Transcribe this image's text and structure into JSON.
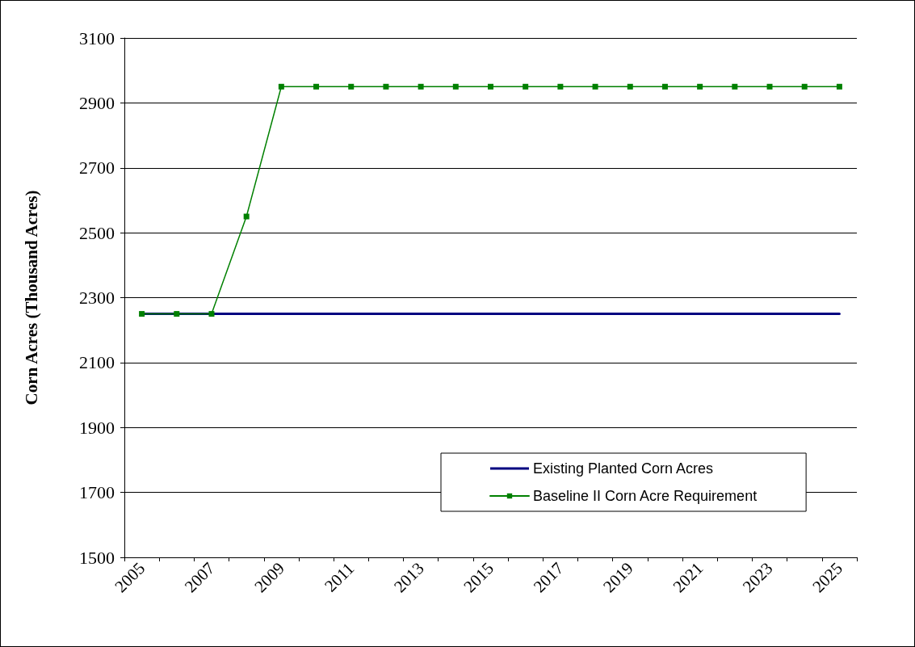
{
  "chart_data": {
    "type": "line",
    "ylabel": "Corn Acres (Thousand Acres)",
    "categories": [
      "2005",
      null,
      "2007",
      null,
      "2009",
      null,
      "2011",
      null,
      "2013",
      null,
      "2015",
      null,
      "2017",
      null,
      "2019",
      null,
      "2021",
      null,
      "2023",
      null,
      "2025"
    ],
    "series": [
      {
        "name": "Existing Planted Corn Acres",
        "color": "#000080",
        "marker": "none",
        "values": [
          2250,
          2250,
          2250,
          2250,
          2250,
          2250,
          2250,
          2250,
          2250,
          2250,
          2250,
          2250,
          2250,
          2250,
          2250,
          2250,
          2250,
          2250,
          2250,
          2250,
          2250
        ]
      },
      {
        "name": "Baseline II Corn Acre Requirement",
        "color": "#008000",
        "marker": "square",
        "values": [
          2250,
          2250,
          2250,
          2550,
          2950,
          2950,
          2950,
          2950,
          2950,
          2950,
          2950,
          2950,
          2950,
          2950,
          2950,
          2950,
          2950,
          2950,
          2950,
          2950,
          2950
        ]
      }
    ],
    "ylim": [
      1500,
      3100
    ],
    "yticks": [
      1500,
      1700,
      1900,
      2100,
      2300,
      2500,
      2700,
      2900,
      3100
    ],
    "grid": "y",
    "legend": "bottom right",
    "line_style": "solid"
  }
}
